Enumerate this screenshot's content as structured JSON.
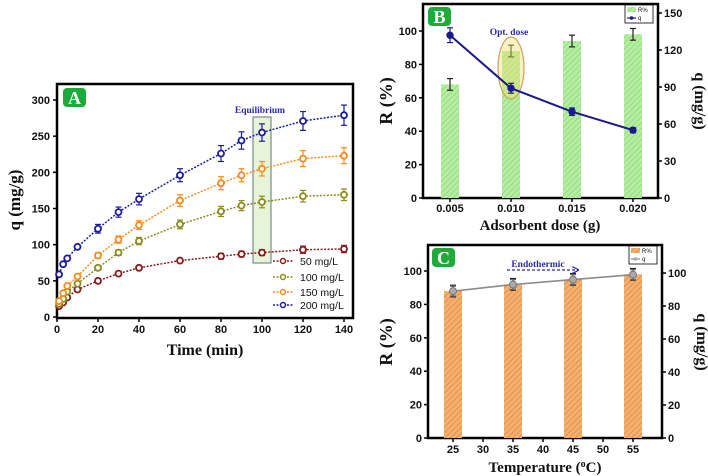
{
  "chart_data": [
    {
      "panel": "A",
      "type": "line",
      "xlabel": "Time (min)",
      "ylabel": "q (mg/g)",
      "xlim": [
        0,
        140
      ],
      "ylim": [
        0,
        300
      ],
      "xticks": [
        "0",
        "20",
        "40",
        "60",
        "80",
        "100",
        "120",
        "140"
      ],
      "yticks": [
        "0",
        "50",
        "100",
        "150",
        "200",
        "250",
        "300"
      ],
      "x": [
        1,
        3,
        5,
        10,
        20,
        30,
        40,
        60,
        80,
        90,
        100,
        120,
        140
      ],
      "series": [
        {
          "name": "50 mg/L",
          "color": "#8b1c1c",
          "values": [
            15,
            20,
            27,
            38,
            50,
            60,
            68,
            78,
            84,
            87,
            89,
            93,
            94
          ],
          "err": [
            2,
            2,
            2,
            3,
            3,
            3,
            3,
            3,
            4,
            4,
            4,
            5,
            5
          ]
        },
        {
          "name": "100 mg/L",
          "color": "#8c8c1e",
          "values": [
            18,
            25,
            35,
            46,
            68,
            89,
            105,
            128,
            146,
            154,
            159,
            167,
            169
          ],
          "err": [
            2,
            2,
            3,
            3,
            3,
            4,
            5,
            6,
            7,
            7,
            8,
            8,
            8
          ]
        },
        {
          "name": "150 mg/L",
          "color": "#ff8a1c",
          "values": [
            22,
            33,
            43,
            56,
            85,
            107,
            127,
            161,
            185,
            196,
            205,
            219,
            223
          ],
          "err": [
            2,
            2,
            3,
            3,
            4,
            5,
            6,
            8,
            9,
            9,
            10,
            11,
            11
          ]
        },
        {
          "name": "200 mg/L",
          "color": "#1c1ca0",
          "values": [
            59,
            73,
            81,
            97,
            122,
            145,
            163,
            196,
            226,
            244,
            255,
            271,
            279
          ],
          "err": [
            3,
            3,
            4,
            5,
            6,
            7,
            8,
            9,
            11,
            12,
            12,
            13,
            14
          ]
        }
      ],
      "annotation": "Equilibrium",
      "badge": "A",
      "legend": "bottom-right"
    },
    {
      "panel": "B",
      "type": "bar+line",
      "xlabel": "Adsorbent dose (g)",
      "ylabel": "R (%)",
      "ylabel_right": "q (mg/g)",
      "categories": [
        "0.005",
        "0.010",
        "0.015",
        "0.020"
      ],
      "yticks": [
        "0",
        "20",
        "40",
        "60",
        "80",
        "100"
      ],
      "yticks_right": [
        "0",
        "30",
        "60",
        "90",
        "120",
        "150"
      ],
      "series": [
        {
          "name": "R%",
          "type": "bar",
          "axis": "left",
          "color": "#b5eea0",
          "values": [
            68,
            88,
            94,
            98
          ],
          "err": [
            3.5,
            3.5,
            3.5,
            3.5
          ]
        },
        {
          "name": "q",
          "type": "line",
          "axis": "right",
          "color": "#1a1a8c",
          "values": [
            132,
            89,
            70,
            55
          ],
          "err": [
            6,
            4,
            3,
            2
          ]
        }
      ],
      "annotation": "Opt. dose",
      "badge": "B",
      "legend": "top-right"
    },
    {
      "panel": "C",
      "type": "bar+line",
      "xlabel": "Temperature (",
      "xlabel_sup": "o",
      "xlabel_end": "C)",
      "ylabel": "R (%)",
      "ylabel_right": "q (mg/g)",
      "x": [
        25,
        35,
        45,
        55
      ],
      "xticks": [
        "25",
        "30",
        "35",
        "40",
        "45",
        "50",
        "55"
      ],
      "yticks": [
        "0",
        "20",
        "40",
        "60",
        "80",
        "100"
      ],
      "yticks_right": [
        "0",
        "20",
        "40",
        "60",
        "80",
        "100"
      ],
      "series": [
        {
          "name": "R%",
          "type": "bar",
          "axis": "left",
          "color": "#f6b06c",
          "values": [
            88,
            92,
            95,
            98
          ],
          "err": [
            3.5,
            3.5,
            3.5,
            3.5
          ]
        },
        {
          "name": "q",
          "type": "line",
          "axis": "right",
          "color": "#8c8c8c",
          "values": [
            89,
            93,
            96,
            99
          ],
          "err": [
            3,
            3,
            3,
            3
          ]
        }
      ],
      "annotation": "Endothermic",
      "badge": "C",
      "legend": "top-right"
    }
  ]
}
